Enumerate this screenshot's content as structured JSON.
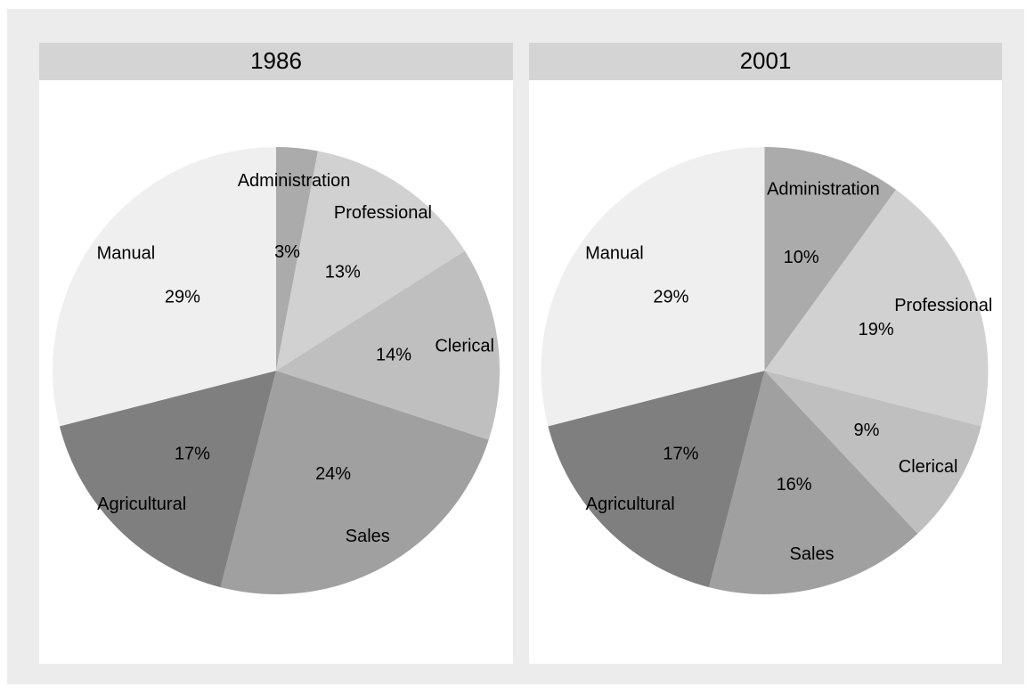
{
  "chart_data": [
    {
      "type": "pie",
      "title": "1986",
      "categories": [
        "Administration",
        "Professional",
        "Clerical",
        "Sales",
        "Agricultural",
        "Manual"
      ],
      "values": [
        3,
        13,
        14,
        24,
        17,
        29
      ],
      "value_labels": [
        "3%",
        "13%",
        "14%",
        "24%",
        "17%",
        "29%"
      ],
      "colors": [
        "#ababab",
        "#d1d1d1",
        "#bfbfbf",
        "#a0a0a0",
        "#7f7f7f",
        "#efefef"
      ]
    },
    {
      "type": "pie",
      "title": "2001",
      "categories": [
        "Administration",
        "Professional",
        "Clerical",
        "Sales",
        "Agricultural",
        "Manual"
      ],
      "values": [
        10,
        19,
        9,
        16,
        17,
        29
      ],
      "value_labels": [
        "10%",
        "19%",
        "9%",
        "16%",
        "17%",
        "29%"
      ],
      "colors": [
        "#ababab",
        "#d1d1d1",
        "#bfbfbf",
        "#a0a0a0",
        "#7f7f7f",
        "#efefef"
      ]
    }
  ]
}
